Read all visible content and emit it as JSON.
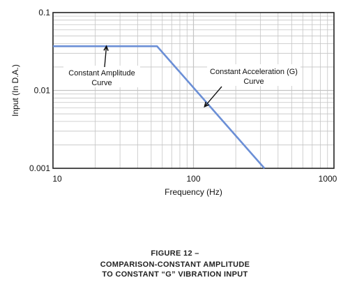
{
  "chart_data": {
    "type": "line",
    "xscale": "log",
    "yscale": "log",
    "xlim": [
      10,
      1000
    ],
    "ylim": [
      0.001,
      0.1
    ],
    "xticks": [
      10,
      100,
      1000
    ],
    "xtick_labels": [
      "10",
      "100",
      "1000"
    ],
    "yticks": [
      0.001,
      0.01,
      0.1
    ],
    "ytick_labels": [
      "0.001",
      "0.01",
      "0.1"
    ],
    "xlabel": "Frequency (Hz)",
    "ylabel": "Input (In D.A.)",
    "grid": true,
    "series": [
      {
        "x": [
          10,
          55,
          320
        ],
        "y": [
          0.037,
          0.037,
          0.001
        ]
      }
    ],
    "annotations": [
      {
        "lines": [
          "Constant Amplitude",
          "Curve"
        ],
        "arrow_to": [
          24,
          0.037
        ]
      },
      {
        "lines": [
          "Constant Acceleration (G)",
          "Curve"
        ],
        "arrow_to": [
          120,
          0.0062
        ]
      }
    ]
  },
  "caption": {
    "line1": "FIGURE 12 –",
    "line2": "COMPARISON-CONSTANT AMPLITUDE",
    "line3": "TO CONSTANT “G” VIBRATION INPUT"
  },
  "colors": {
    "curve": "#6b8fd6",
    "grid": "#c4c4c4",
    "frame": "#222222"
  }
}
